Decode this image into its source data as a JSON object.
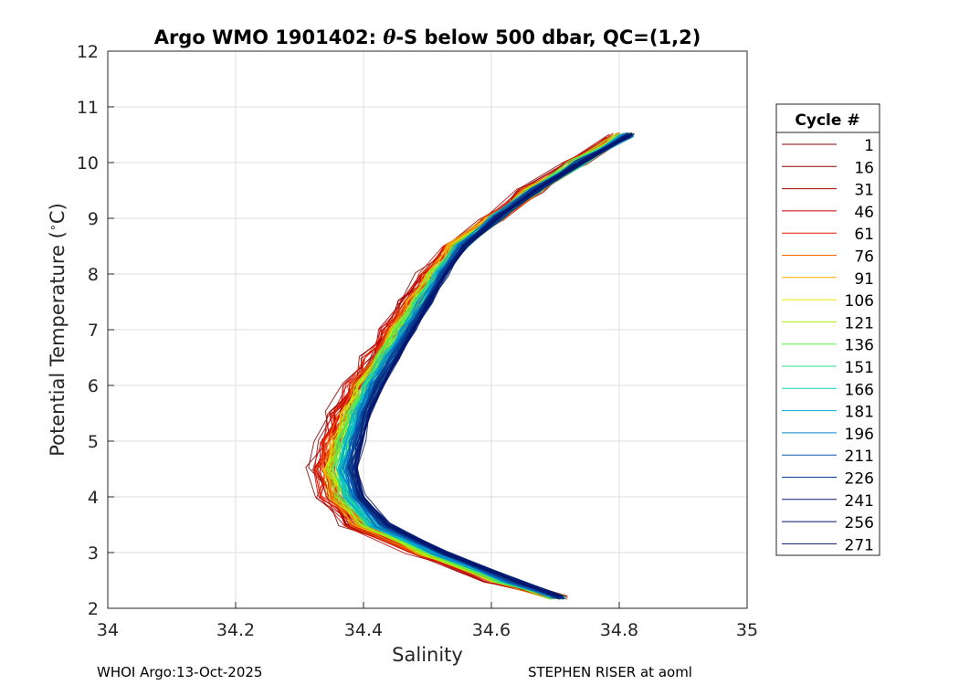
{
  "chart_data": {
    "type": "line",
    "title_prefix": "Argo WMO 1901402: ",
    "title_symbol": "θ",
    "title_suffix": "-S below 500 dbar,  QC=(1,2)",
    "xlabel": "Salinity",
    "ylabel_prefix": "Potential Temperature (",
    "ylabel_unit_degree": "∘",
    "ylabel_suffix": "C)",
    "xlim": [
      34,
      35
    ],
    "ylim": [
      2,
      12
    ],
    "x_ticks": [
      "34",
      "34.2",
      "34.4",
      "34.6",
      "34.8",
      "35"
    ],
    "x_tick_values": [
      34,
      34.2,
      34.4,
      34.6,
      34.8,
      35
    ],
    "y_ticks": [
      "2",
      "3",
      "4",
      "5",
      "6",
      "7",
      "8",
      "9",
      "10",
      "11",
      "12"
    ],
    "y_tick_values": [
      2,
      3,
      4,
      5,
      6,
      7,
      8,
      9,
      10,
      11,
      12
    ],
    "grid": true,
    "legend": {
      "title": "Cycle #",
      "position": "right",
      "entries": [
        "1",
        "16",
        "31",
        "46",
        "61",
        "76",
        "91",
        "106",
        "121",
        "136",
        "151",
        "166",
        "181",
        "196",
        "211",
        "226",
        "241",
        "256",
        "271"
      ],
      "colors": [
        "#7f0000",
        "#8f0000",
        "#a00000",
        "#c80000",
        "#e31a00",
        "#f26a00",
        "#f5a800",
        "#f0e800",
        "#a6f200",
        "#5cf04a",
        "#30e08a",
        "#10d0b8",
        "#00b0d8",
        "#0a88c8",
        "#0a5ea8",
        "#0a3f8a",
        "#081f6e",
        "#06126e",
        "#041470"
      ]
    },
    "series_envelope": {
      "description_only": false,
      "mean_profile_theta": [
        2.2,
        2.5,
        3.0,
        3.5,
        4.0,
        4.5,
        5.0,
        5.5,
        6.0,
        6.5,
        7.0,
        7.5,
        8.0,
        8.5,
        9.0,
        9.5,
        10.0,
        10.5
      ],
      "mean_profile_salinity_first": [
        34.7,
        34.6,
        34.48,
        34.38,
        34.34,
        34.33,
        34.34,
        34.36,
        34.38,
        34.41,
        34.44,
        34.47,
        34.5,
        34.54,
        34.6,
        34.66,
        34.73,
        34.8
      ],
      "mean_profile_salinity_last": [
        34.71,
        34.64,
        34.53,
        34.44,
        34.4,
        34.39,
        34.4,
        34.41,
        34.43,
        34.455,
        34.48,
        34.505,
        34.53,
        34.56,
        34.61,
        34.67,
        34.74,
        34.82
      ]
    }
  },
  "footer": {
    "left": "WHOI Argo:13-Oct-2025",
    "right": "STEPHEN RISER at aoml"
  }
}
